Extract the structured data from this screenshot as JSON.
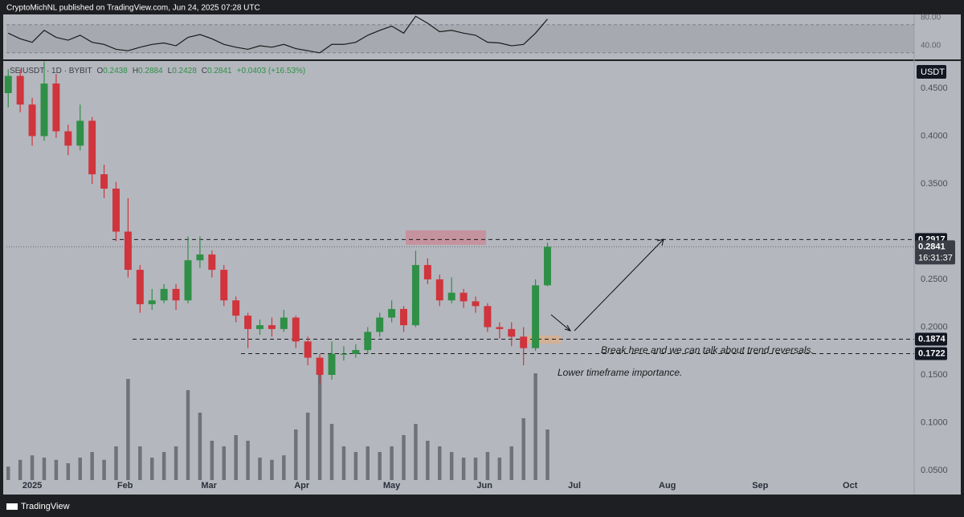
{
  "header": {
    "publisher": "CryptoMichNL published on TradingView.com, Jun 24, 2025 07:28 UTC"
  },
  "footer": {
    "brand": "TradingView"
  },
  "chart_data": {
    "type": "candlestick",
    "symbol": "SEIUSDT · 1D · BYBIT",
    "ohlc_legend": [
      {
        "label": "O",
        "value": 0.2438
      },
      {
        "label": "H",
        "value": 0.2884
      },
      {
        "label": "L",
        "value": 0.2428
      },
      {
        "label": "C",
        "value": 0.2841
      }
    ],
    "change": "+0.0403 (+16.53%)",
    "currency": "USDT",
    "x": [
      -8,
      -4,
      0,
      4,
      8,
      12,
      16,
      20,
      24,
      28,
      32,
      36,
      40,
      44,
      48,
      52,
      56,
      60,
      64,
      68,
      72,
      76,
      80,
      84,
      88,
      92,
      96,
      100,
      104,
      108,
      112,
      116,
      120,
      124,
      128,
      132,
      136,
      140,
      144,
      148,
      152,
      156,
      160,
      164,
      168,
      172
    ],
    "ohlc": [
      [
        0.445,
        0.47,
        0.43,
        0.463
      ],
      [
        0.463,
        0.47,
        0.425,
        0.433
      ],
      [
        0.433,
        0.44,
        0.39,
        0.4
      ],
      [
        0.4,
        0.478,
        0.395,
        0.455
      ],
      [
        0.455,
        0.465,
        0.398,
        0.405
      ],
      [
        0.405,
        0.412,
        0.38,
        0.39
      ],
      [
        0.39,
        0.433,
        0.385,
        0.416
      ],
      [
        0.416,
        0.42,
        0.35,
        0.36
      ],
      [
        0.36,
        0.37,
        0.335,
        0.345
      ],
      [
        0.345,
        0.352,
        0.29,
        0.3
      ],
      [
        0.3,
        0.335,
        0.252,
        0.26
      ],
      [
        0.26,
        0.265,
        0.215,
        0.224
      ],
      [
        0.224,
        0.24,
        0.218,
        0.228
      ],
      [
        0.228,
        0.245,
        0.225,
        0.24
      ],
      [
        0.24,
        0.245,
        0.218,
        0.228
      ],
      [
        0.228,
        0.295,
        0.225,
        0.27
      ],
      [
        0.27,
        0.295,
        0.262,
        0.276
      ],
      [
        0.276,
        0.28,
        0.252,
        0.26
      ],
      [
        0.26,
        0.265,
        0.222,
        0.228
      ],
      [
        0.228,
        0.232,
        0.205,
        0.212
      ],
      [
        0.212,
        0.215,
        0.178,
        0.198
      ],
      [
        0.198,
        0.208,
        0.192,
        0.202
      ],
      [
        0.202,
        0.21,
        0.19,
        0.198
      ],
      [
        0.198,
        0.218,
        0.195,
        0.21
      ],
      [
        0.21,
        0.212,
        0.178,
        0.185
      ],
      [
        0.185,
        0.19,
        0.16,
        0.168
      ],
      [
        0.168,
        0.172,
        0.14,
        0.15
      ],
      [
        0.15,
        0.185,
        0.145,
        0.172
      ],
      [
        0.172,
        0.18,
        0.165,
        0.172
      ],
      [
        0.172,
        0.182,
        0.168,
        0.176
      ],
      [
        0.176,
        0.2,
        0.172,
        0.195
      ],
      [
        0.195,
        0.215,
        0.19,
        0.21
      ],
      [
        0.21,
        0.228,
        0.205,
        0.219
      ],
      [
        0.219,
        0.222,
        0.195,
        0.202
      ],
      [
        0.202,
        0.28,
        0.2,
        0.265
      ],
      [
        0.265,
        0.272,
        0.245,
        0.25
      ],
      [
        0.25,
        0.255,
        0.222,
        0.228
      ],
      [
        0.228,
        0.252,
        0.225,
        0.236
      ],
      [
        0.236,
        0.24,
        0.22,
        0.227
      ],
      [
        0.227,
        0.232,
        0.215,
        0.222
      ],
      [
        0.222,
        0.225,
        0.195,
        0.2
      ],
      [
        0.2,
        0.205,
        0.188,
        0.198
      ],
      [
        0.198,
        0.205,
        0.18,
        0.19
      ],
      [
        0.19,
        0.2,
        0.16,
        0.178
      ],
      [
        0.178,
        0.25,
        0.175,
        0.2438
      ],
      [
        0.2438,
        0.2884,
        0.2428,
        0.2841
      ]
    ],
    "up_color": "#2f8f46",
    "down_color": "#d0343c",
    "volume": [
      12,
      18,
      22,
      20,
      18,
      15,
      20,
      25,
      18,
      30,
      90,
      30,
      20,
      25,
      30,
      80,
      60,
      35,
      30,
      40,
      35,
      20,
      18,
      22,
      45,
      60,
      100,
      50,
      30,
      25,
      30,
      25,
      30,
      40,
      50,
      35,
      30,
      25,
      20,
      20,
      25,
      20,
      30,
      55,
      95,
      45
    ],
    "volume_color": "#6f7279",
    "volume_lim": [
      0,
      100
    ],
    "xlim": [
      -8.6,
      294.4
    ],
    "xticks": [
      {
        "value": 0,
        "label": "2025"
      },
      {
        "value": 31,
        "label": "Feb"
      },
      {
        "value": 59,
        "label": "Mar"
      },
      {
        "value": 90,
        "label": "Apr"
      },
      {
        "value": 120,
        "label": "May"
      },
      {
        "value": 151,
        "label": "Jun"
      },
      {
        "value": 181,
        "label": "Jul"
      },
      {
        "value": 212,
        "label": "Aug"
      },
      {
        "value": 243,
        "label": "Sep"
      },
      {
        "value": 273,
        "label": "Oct"
      }
    ],
    "ylim": [
      0.0256,
      0.4769
    ],
    "yticks": [
      {
        "value": 0.05,
        "label": "0.0500"
      },
      {
        "value": 0.1,
        "label": "0.1000"
      },
      {
        "value": 0.15,
        "label": "0.1500"
      },
      {
        "value": 0.2,
        "label": "0.2000"
      },
      {
        "value": 0.25,
        "label": "0.2500"
      },
      {
        "value": 0.35,
        "label": "0.3500"
      },
      {
        "value": 0.4,
        "label": "0.4000"
      },
      {
        "value": 0.45,
        "label": "0.4500"
      }
    ],
    "levels": [
      0.2917,
      0.1874,
      0.1722
    ],
    "last_price": 0.2841,
    "countdown": "16:31:37",
    "annotations": [
      "Break here and we can talk about trend reversals.",
      "Lower timeframe importance."
    ],
    "rsi": {
      "values": [
        58,
        50,
        45,
        62,
        52,
        48,
        55,
        45,
        42,
        35,
        33,
        38,
        42,
        44,
        40,
        52,
        56,
        50,
        42,
        38,
        35,
        40,
        38,
        42,
        36,
        33,
        30,
        42,
        42,
        45,
        55,
        62,
        68,
        58,
        82,
        72,
        60,
        62,
        58,
        55,
        45,
        44,
        40,
        42,
        58,
        78
      ],
      "ylim": [
        22.9,
        84.6
      ],
      "yticks": [
        {
          "value": 80,
          "label": "80.00"
        },
        {
          "value": 40,
          "label": "40.00"
        }
      ],
      "band": [
        30,
        70
      ],
      "color": "#1b1b1b"
    }
  }
}
